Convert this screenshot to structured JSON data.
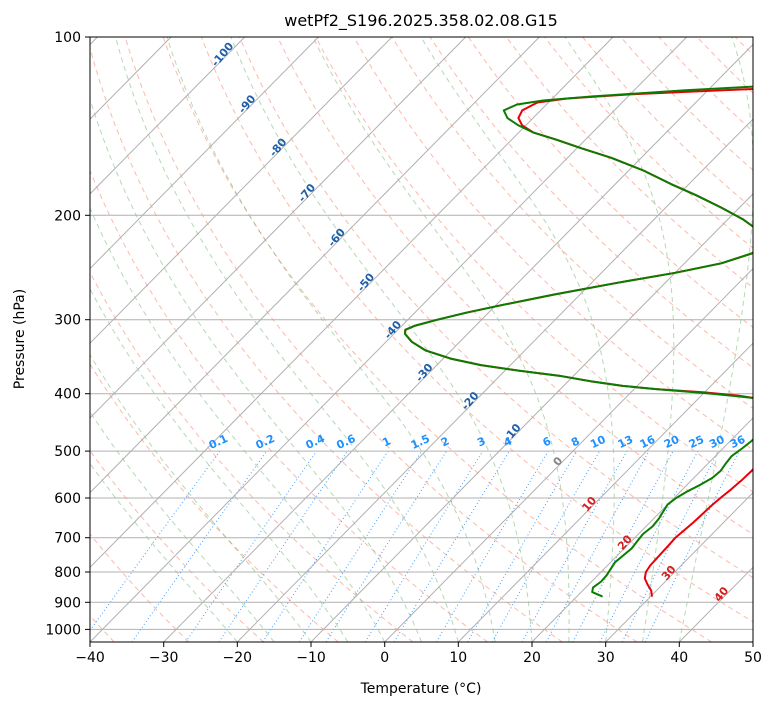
{
  "chart_data": {
    "type": "line",
    "subtype": "skew-t log-p diagram",
    "title": "wetPf2_S196.2025.358.02.08.G15",
    "xlabel": "Temperature (°C)",
    "ylabel": "Pressure (hPa)",
    "xlim": [
      -40,
      50
    ],
    "ylim": [
      1050,
      100
    ],
    "x_ticks": [
      -40,
      -30,
      -20,
      -10,
      0,
      10,
      20,
      30,
      40,
      50
    ],
    "x_tick_labels": [
      "−40",
      "−30",
      "−20",
      "−10",
      "0",
      "10",
      "20",
      "30",
      "40",
      "50"
    ],
    "y_ticks": [
      1000,
      900,
      800,
      700,
      600,
      500,
      400,
      300,
      200,
      100
    ],
    "y_tick_labels": [
      "1000",
      "900",
      "800",
      "700",
      "600",
      "500",
      "400",
      "300",
      "200",
      "100"
    ],
    "grid": true,
    "colors": {
      "temperature": "#e8000b",
      "dewpoint": "#0a7d00",
      "dry_adiabat": "#fa8064",
      "moist_adiabat": "#6ab46a",
      "mixing_ratio": "#1e90ff",
      "isotherm_label": "#1f5fa8",
      "zero_isotherm": "#888888",
      "warm_isotherm_label": "#d02020",
      "grid": "#b0b0b0"
    },
    "series": [
      {
        "name": "Temperature",
        "color": "#e8000b",
        "points": [
          [
            30.2,
            880
          ],
          [
            29.3,
            860
          ],
          [
            28.0,
            840
          ],
          [
            26.8,
            820
          ],
          [
            26.1,
            800
          ],
          [
            25.8,
            780
          ],
          [
            25.7,
            750
          ],
          [
            25.6,
            720
          ],
          [
            25.5,
            700
          ],
          [
            25.7,
            680
          ],
          [
            25.9,
            660
          ],
          [
            26.0,
            640
          ],
          [
            26.1,
            620
          ],
          [
            26.3,
            600
          ],
          [
            26.6,
            580
          ],
          [
            26.8,
            560
          ],
          [
            26.9,
            540
          ],
          [
            26.7,
            520
          ],
          [
            26.6,
            500
          ],
          [
            26.5,
            480
          ],
          [
            26.4,
            460
          ],
          [
            26.3,
            440
          ],
          [
            25.5,
            425
          ],
          [
            24.3,
            420
          ],
          [
            19.5,
            410
          ],
          [
            15.0,
            403
          ],
          [
            10.0,
            398
          ],
          [
            3.0,
            393
          ],
          [
            -2.0,
            388
          ],
          [
            -7.0,
            381
          ],
          [
            -12.0,
            373
          ],
          [
            -18.0,
            366
          ],
          [
            -24.0,
            358
          ],
          [
            -29.0,
            349
          ],
          [
            -33.5,
            338
          ],
          [
            -36.5,
            327
          ],
          [
            -38.5,
            317
          ],
          [
            -39.0,
            312
          ],
          [
            -38.2,
            307
          ],
          [
            -36.0,
            300
          ],
          [
            -33.0,
            292
          ],
          [
            -29.0,
            283
          ],
          [
            -23.5,
            272
          ],
          [
            -16.5,
            260
          ],
          [
            -10.0,
            250
          ],
          [
            -5.0,
            241
          ],
          [
            -2.2,
            232
          ],
          [
            -1.6,
            225
          ],
          [
            -2.6,
            218
          ],
          [
            -4.8,
            211
          ],
          [
            -8.0,
            203
          ],
          [
            -12.5,
            194
          ],
          [
            -17.5,
            185
          ],
          [
            -22.5,
            177
          ],
          [
            -28.0,
            168
          ],
          [
            -34.0,
            160
          ],
          [
            -39.5,
            154
          ],
          [
            -44.0,
            149
          ],
          [
            -48.0,
            145
          ],
          [
            -50.5,
            141
          ],
          [
            -52.0,
            137
          ],
          [
            -52.5,
            133
          ],
          [
            -51.5,
            129
          ],
          [
            -48.0,
            127
          ],
          [
            -40.0,
            125
          ],
          [
            -28.0,
            123
          ],
          [
            -15.0,
            121
          ],
          [
            -6.0,
            118
          ],
          [
            -1.5,
            115
          ],
          [
            1.5,
            111
          ],
          [
            3.2,
            107
          ],
          [
            2.5,
            103
          ],
          [
            0.8,
            100
          ]
        ]
      },
      {
        "name": "Dewpoint",
        "color": "#0a7d00",
        "points": [
          [
            23.5,
            880
          ],
          [
            21.5,
            865
          ],
          [
            21.0,
            850
          ],
          [
            21.3,
            830
          ],
          [
            21.2,
            810
          ],
          [
            20.9,
            790
          ],
          [
            20.6,
            770
          ],
          [
            20.8,
            750
          ],
          [
            21.0,
            730
          ],
          [
            20.8,
            710
          ],
          [
            20.6,
            690
          ],
          [
            20.9,
            670
          ],
          [
            20.7,
            650
          ],
          [
            20.3,
            630
          ],
          [
            20.0,
            615
          ],
          [
            20.3,
            600
          ],
          [
            20.9,
            585
          ],
          [
            21.8,
            570
          ],
          [
            22.5,
            555
          ],
          [
            22.7,
            540
          ],
          [
            22.4,
            525
          ],
          [
            22.2,
            510
          ],
          [
            22.6,
            495
          ],
          [
            22.9,
            480
          ],
          [
            22.8,
            465
          ],
          [
            22.5,
            450
          ],
          [
            22.9,
            435
          ],
          [
            23.5,
            425
          ],
          [
            23.8,
            420
          ],
          [
            20.0,
            410
          ],
          [
            15.0,
            404
          ],
          [
            10.0,
            399
          ],
          [
            3.0,
            393
          ],
          [
            -2.0,
            388
          ],
          [
            -7.0,
            381
          ],
          [
            -12.0,
            373
          ],
          [
            -18.0,
            366
          ],
          [
            -24.0,
            358
          ],
          [
            -29.0,
            349
          ],
          [
            -33.5,
            338
          ],
          [
            -36.5,
            327
          ],
          [
            -38.5,
            317
          ],
          [
            -39.0,
            312
          ],
          [
            -38.2,
            307
          ],
          [
            -36.0,
            300
          ],
          [
            -33.0,
            292
          ],
          [
            -29.0,
            283
          ],
          [
            -23.5,
            272
          ],
          [
            -16.5,
            260
          ],
          [
            -10.0,
            250
          ],
          [
            -5.0,
            241
          ],
          [
            -2.2,
            232
          ],
          [
            -1.6,
            225
          ],
          [
            -2.6,
            218
          ],
          [
            -4.8,
            211
          ],
          [
            -8.0,
            203
          ],
          [
            -12.5,
            194
          ],
          [
            -17.5,
            185
          ],
          [
            -22.5,
            177
          ],
          [
            -28.0,
            168
          ],
          [
            -34.0,
            160
          ],
          [
            -39.5,
            154
          ],
          [
            -44.0,
            149
          ],
          [
            -48.0,
            145
          ],
          [
            -51.0,
            141
          ],
          [
            -53.5,
            137
          ],
          [
            -55.0,
            133
          ],
          [
            -54.0,
            130
          ],
          [
            -51.0,
            128
          ],
          [
            -45.0,
            126
          ],
          [
            -33.0,
            123
          ],
          [
            -18.0,
            120
          ],
          [
            -6.0,
            117
          ],
          [
            -4.0,
            113
          ],
          [
            -4.5,
            108
          ],
          [
            -6.0,
            103
          ],
          [
            -6.5,
            100
          ]
        ]
      }
    ],
    "isotherm_labels": [
      {
        "text": "-100",
        "t": -100
      },
      {
        "text": "-90",
        "t": -90
      },
      {
        "text": "-80",
        "t": -80
      },
      {
        "text": "-70",
        "t": -70
      },
      {
        "text": "-60",
        "t": -60
      },
      {
        "text": "-50",
        "t": -50
      },
      {
        "text": "-40",
        "t": -40
      },
      {
        "text": "-30",
        "t": -30
      },
      {
        "text": "-20",
        "t": -20
      },
      {
        "text": "-10",
        "t": -10
      }
    ],
    "zero_isotherm_label": {
      "text": "0",
      "t": 0
    },
    "warm_isotherm_labels": [
      {
        "text": "10",
        "t": 10
      },
      {
        "text": "20",
        "t": 20
      },
      {
        "text": "30",
        "t": 30
      },
      {
        "text": "40",
        "t": 40
      }
    ],
    "mixing_ratio_labels": [
      "0.1",
      "0.2",
      "0.4",
      "0.6",
      "1",
      "1.5",
      "2",
      "3",
      "4",
      "6",
      "8",
      "10",
      "13",
      "16",
      "20",
      "25",
      "30",
      "36"
    ]
  }
}
